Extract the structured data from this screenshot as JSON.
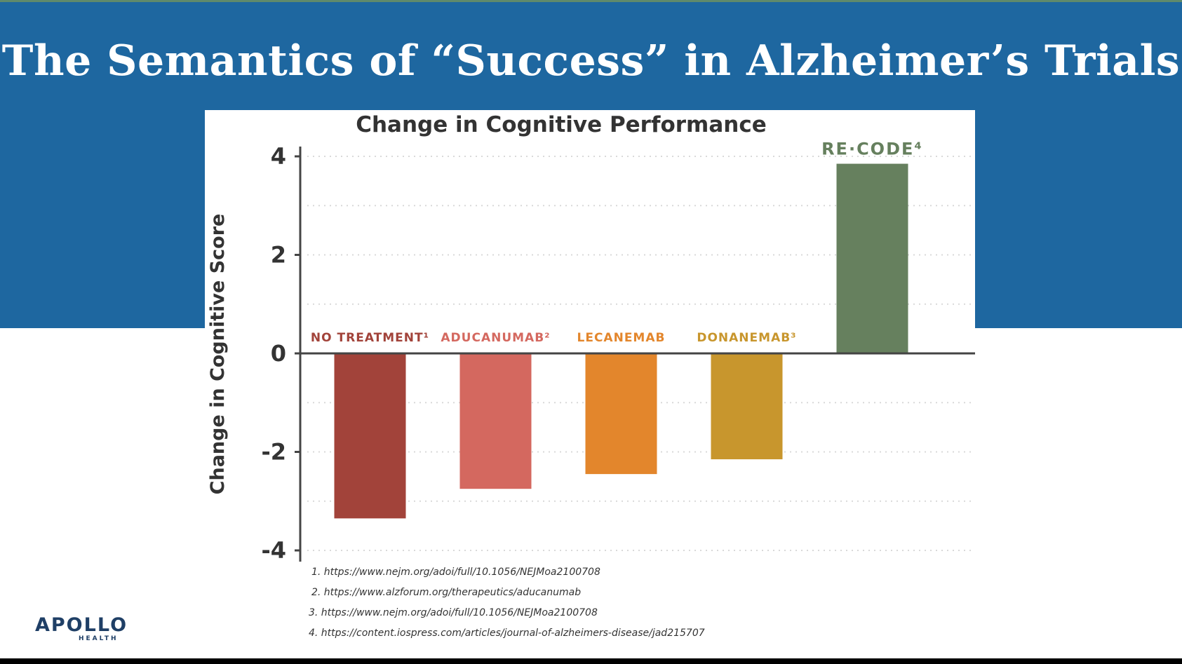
{
  "slide": {
    "title": "The Semantics of “Success” in Alzheimer’s Trials"
  },
  "logo": {
    "name": "APOLLO",
    "tagline": "HEALTH"
  },
  "colors": {
    "header_band": "#1e67a0",
    "accent_line": "#5f8a6b"
  },
  "chart_data": {
    "type": "bar",
    "title": "Change in Cognitive Performance",
    "ylabel": "Change in Cognitive Score",
    "xlabel": "",
    "ylim": [
      -4,
      4
    ],
    "yticks": [
      4,
      2,
      0,
      -2,
      -4
    ],
    "ytick_labels": [
      "4",
      "2",
      "0",
      "-2",
      "-4"
    ],
    "grid": "dotted horizontal",
    "categories": [
      "NO TREATMENT¹",
      "ADUCANUMAB²",
      "LECANEMAB",
      "DONANEMAB³",
      "RE·CODE⁴"
    ],
    "values": [
      -3.35,
      -2.75,
      -2.45,
      -2.15,
      3.85
    ],
    "colors": [
      "#a2433a",
      "#d4685f",
      "#e3862c",
      "#c8962d",
      "#66805e"
    ]
  },
  "footnotes": [
    "1. https://www.nejm.org/adoi/full/10.1056/NEJMoa2100708",
    "2. https://www.alzforum.org/therapeutics/aducanumab",
    "3. https://www.nejm.org/adoi/full/10.1056/NEJMoa2100708",
    "4. https://content.iospress.com/articles/journal-of-alzheimers-disease/jad215707"
  ]
}
